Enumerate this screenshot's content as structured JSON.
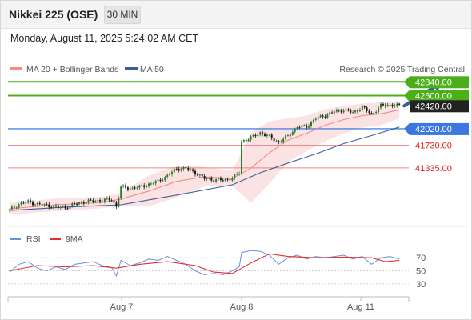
{
  "header": {
    "title": "Nikkei 225 (OSE)",
    "interval": "30 MIN"
  },
  "timestamp": "Monday, August 11, 2025 5:24:02 AM CET",
  "legend": {
    "bollinger": "MA 20 + Bollinger Bands",
    "ma50": "MA 50",
    "credit": "Research © 2025 Trading Central"
  },
  "rsi_legend": {
    "rsi": "RSI",
    "ma": "9MA"
  },
  "colors": {
    "up": "#2b7a2b",
    "down": "#1a1a1a",
    "green_line": "#4caf1a",
    "blue_line": "#4a86e8",
    "red_line": "#f08080",
    "ma20": "#f28a8a",
    "ma50": "#3b5f9e",
    "band": "#fcdede",
    "rsi": "#6b8fdc",
    "rsi_ma": "#e03030",
    "arrow": "#2e5f9e"
  },
  "chart_data": [
    {
      "type": "candlestick",
      "title": "Nikkei 225 (OSE)",
      "x_ticks": [
        "Aug 7",
        "Aug 8",
        "Aug 11"
      ],
      "levels": [
        {
          "value": 42840.0,
          "label": "42840.00",
          "style": "resistance-green",
          "tag": true
        },
        {
          "value": 42600.0,
          "label": "42600.00",
          "style": "resistance-green",
          "tag": true
        },
        {
          "value": 42420.0,
          "label": "42420.00",
          "style": "last-price",
          "tag": true
        },
        {
          "value": 42020.0,
          "label": "42020.00",
          "style": "pivot-blue",
          "tag": true
        },
        {
          "value": 41730.0,
          "label": "41730.00",
          "style": "support-red",
          "tag": false
        },
        {
          "value": 41335.0,
          "label": "41335.00",
          "style": "support-red",
          "tag": false
        }
      ],
      "ylim": [
        40550,
        42900
      ],
      "close_path": [
        [
          0,
          40600
        ],
        [
          4,
          40700
        ],
        [
          8,
          40740
        ],
        [
          12,
          40700
        ],
        [
          16,
          40680
        ],
        [
          20,
          40650
        ],
        [
          24,
          40640
        ],
        [
          28,
          40700
        ],
        [
          32,
          40740
        ],
        [
          36,
          40760
        ],
        [
          40,
          40770
        ],
        [
          44,
          40780
        ],
        [
          46,
          40660
        ],
        [
          48,
          41000
        ],
        [
          52,
          40980
        ],
        [
          56,
          41000
        ],
        [
          60,
          41050
        ],
        [
          64,
          41100
        ],
        [
          68,
          41200
        ],
        [
          72,
          41320
        ],
        [
          76,
          41330
        ],
        [
          80,
          41250
        ],
        [
          84,
          41150
        ],
        [
          88,
          41130
        ],
        [
          92,
          41120
        ],
        [
          96,
          41160
        ],
        [
          99,
          41250
        ],
        [
          100,
          41800
        ],
        [
          104,
          41860
        ],
        [
          108,
          41950
        ],
        [
          112,
          41880
        ],
        [
          116,
          41780
        ],
        [
          120,
          41900
        ],
        [
          124,
          42050
        ],
        [
          128,
          42060
        ],
        [
          132,
          42200
        ],
        [
          136,
          42250
        ],
        [
          140,
          42320
        ],
        [
          144,
          42350
        ],
        [
          148,
          42300
        ],
        [
          152,
          42400
        ],
        [
          156,
          42270
        ],
        [
          160,
          42420
        ],
        [
          164,
          42440
        ],
        [
          168,
          42420
        ]
      ],
      "ma20_path": [
        [
          0,
          40620
        ],
        [
          20,
          40690
        ],
        [
          40,
          40730
        ],
        [
          48,
          40790
        ],
        [
          60,
          40930
        ],
        [
          72,
          41100
        ],
        [
          84,
          41180
        ],
        [
          96,
          41150
        ],
        [
          104,
          41330
        ],
        [
          112,
          41600
        ],
        [
          120,
          41820
        ],
        [
          128,
          41940
        ],
        [
          136,
          42080
        ],
        [
          144,
          42180
        ],
        [
          152,
          42250
        ],
        [
          160,
          42280
        ],
        [
          168,
          42350
        ]
      ],
      "bb_upper_path": [
        [
          0,
          40720
        ],
        [
          20,
          40800
        ],
        [
          40,
          40830
        ],
        [
          48,
          40900
        ],
        [
          60,
          41200
        ],
        [
          72,
          41380
        ],
        [
          84,
          41350
        ],
        [
          96,
          41280
        ],
        [
          104,
          41950
        ],
        [
          112,
          42150
        ],
        [
          120,
          42200
        ],
        [
          128,
          42250
        ],
        [
          136,
          42360
        ],
        [
          144,
          42420
        ],
        [
          152,
          42460
        ],
        [
          160,
          42480
        ],
        [
          168,
          42500
        ]
      ],
      "bb_lower_path": [
        [
          0,
          40520
        ],
        [
          20,
          40580
        ],
        [
          40,
          40630
        ],
        [
          48,
          40680
        ],
        [
          60,
          40660
        ],
        [
          72,
          40820
        ],
        [
          84,
          41010
        ],
        [
          96,
          41020
        ],
        [
          104,
          40720
        ],
        [
          112,
          41060
        ],
        [
          120,
          41440
        ],
        [
          128,
          41630
        ],
        [
          136,
          41800
        ],
        [
          144,
          41940
        ],
        [
          152,
          42040
        ],
        [
          160,
          42080
        ],
        [
          168,
          42200
        ]
      ],
      "ma50_path": [
        [
          0,
          40590
        ],
        [
          24,
          40650
        ],
        [
          48,
          40690
        ],
        [
          72,
          40860
        ],
        [
          96,
          41040
        ],
        [
          108,
          41250
        ],
        [
          120,
          41420
        ],
        [
          132,
          41580
        ],
        [
          144,
          41760
        ],
        [
          156,
          41900
        ],
        [
          168,
          42050
        ]
      ],
      "projection": {
        "from": [
          168,
          42420
        ],
        "to": [
          186,
          42840
        ]
      }
    },
    {
      "type": "line",
      "title": "RSI",
      "series_names": [
        "RSI",
        "9MA"
      ],
      "y_ticks": [
        70,
        50,
        30
      ],
      "ylim": [
        15,
        85
      ],
      "rsi": [
        [
          0,
          48
        ],
        [
          4,
          60
        ],
        [
          8,
          64
        ],
        [
          12,
          54
        ],
        [
          16,
          50
        ],
        [
          20,
          56
        ],
        [
          24,
          52
        ],
        [
          28,
          60
        ],
        [
          32,
          62
        ],
        [
          36,
          64
        ],
        [
          40,
          58
        ],
        [
          44,
          55
        ],
        [
          46,
          42
        ],
        [
          48,
          66
        ],
        [
          52,
          58
        ],
        [
          56,
          62
        ],
        [
          60,
          68
        ],
        [
          64,
          66
        ],
        [
          68,
          72
        ],
        [
          72,
          66
        ],
        [
          76,
          60
        ],
        [
          80,
          50
        ],
        [
          84,
          44
        ],
        [
          88,
          46
        ],
        [
          92,
          44
        ],
        [
          96,
          50
        ],
        [
          99,
          56
        ],
        [
          100,
          78
        ],
        [
          104,
          81
        ],
        [
          108,
          80
        ],
        [
          112,
          74
        ],
        [
          116,
          60
        ],
        [
          120,
          70
        ],
        [
          124,
          74
        ],
        [
          128,
          68
        ],
        [
          132,
          72
        ],
        [
          136,
          70
        ],
        [
          140,
          72
        ],
        [
          144,
          74
        ],
        [
          148,
          68
        ],
        [
          152,
          72
        ],
        [
          156,
          60
        ],
        [
          160,
          70
        ],
        [
          164,
          72
        ],
        [
          168,
          68
        ]
      ],
      "ma": [
        [
          0,
          50
        ],
        [
          12,
          58
        ],
        [
          24,
          56
        ],
        [
          36,
          58
        ],
        [
          46,
          54
        ],
        [
          56,
          60
        ],
        [
          68,
          64
        ],
        [
          80,
          58
        ],
        [
          88,
          48
        ],
        [
          96,
          46
        ],
        [
          104,
          62
        ],
        [
          112,
          76
        ],
        [
          120,
          72
        ],
        [
          132,
          70
        ],
        [
          144,
          71
        ],
        [
          156,
          70
        ],
        [
          162,
          64
        ],
        [
          168,
          66
        ]
      ]
    }
  ]
}
